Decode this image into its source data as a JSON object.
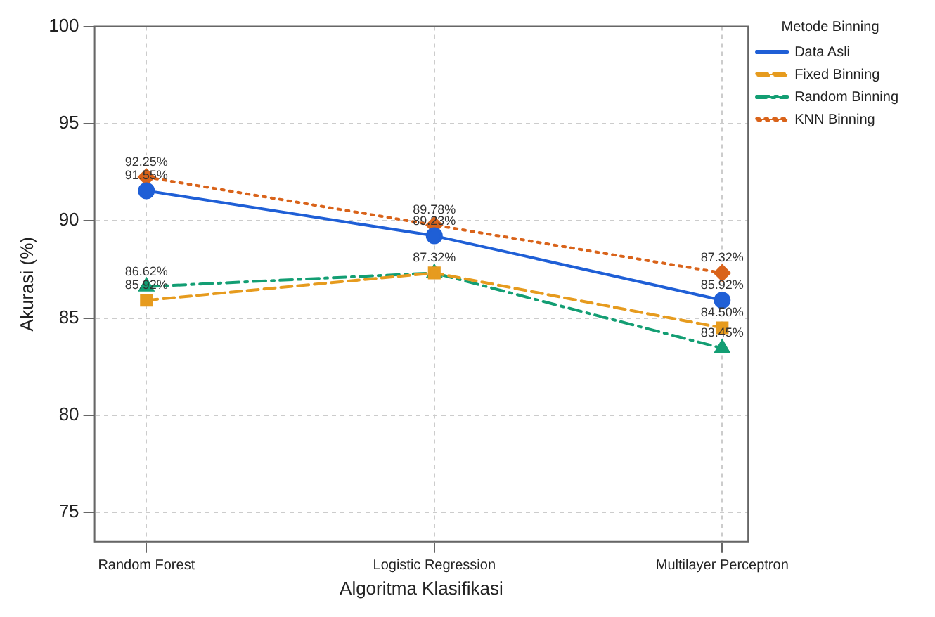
{
  "chart_data": {
    "type": "line",
    "xlabel": "Algoritma Klasifikasi",
    "ylabel": "Akurasi (%)",
    "legend_title": "Metode Binning",
    "legend": "top right",
    "grid": true,
    "categories": [
      "Random Forest",
      "Logistic Regression",
      "Multilayer Perceptron"
    ],
    "ylim": [
      73.5,
      100
    ],
    "yticks": [
      75,
      80,
      85,
      90,
      95,
      100
    ],
    "series": [
      {
        "name": "Data Asli",
        "color": "#1f5fd6",
        "marker": "circle",
        "line_style": "solid",
        "values": [
          91.55,
          89.23,
          85.92
        ],
        "value_labels": [
          "91.55%",
          "89.23%",
          "85.92%"
        ]
      },
      {
        "name": "Fixed Binning",
        "color": "#e69b1e",
        "marker": "square",
        "line_style": "dashed",
        "values": [
          85.92,
          87.32,
          84.5
        ],
        "value_labels": [
          "85.92%",
          null,
          "84.50%"
        ]
      },
      {
        "name": "Random Binning",
        "color": "#139e73",
        "marker": "triangle",
        "line_style": "dashdot",
        "values": [
          86.62,
          87.32,
          83.45
        ],
        "value_labels": [
          "86.62%",
          "87.32%",
          "83.45%"
        ]
      },
      {
        "name": "KNN Binning",
        "color": "#d9631a",
        "marker": "diamond",
        "line_style": "dotted",
        "values": [
          92.25,
          89.78,
          87.32
        ],
        "value_labels": [
          "92.25%",
          "89.78%",
          "87.32%"
        ]
      }
    ]
  }
}
